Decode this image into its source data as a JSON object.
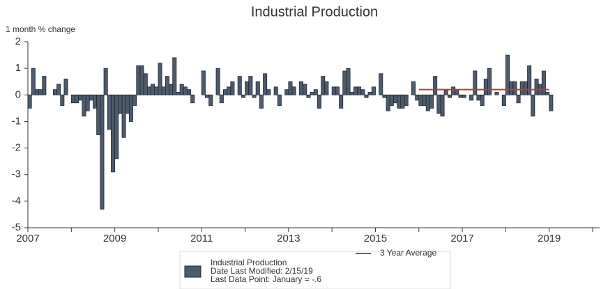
{
  "chart_data": {
    "type": "bar",
    "title": "Industrial Production",
    "ylabel": "1 month % change",
    "xlim": [
      2007,
      2020.16
    ],
    "xticks": [
      2007,
      2009,
      2011,
      2013,
      2015,
      2017,
      2019
    ],
    "xticks_minor": [
      2008,
      2010,
      2012,
      2014,
      2016,
      2018,
      2020
    ],
    "ylim": [
      -5,
      2
    ],
    "yticks": [
      -5,
      -4,
      -3,
      -2,
      -1,
      0,
      1,
      2
    ],
    "legend_notes": [
      "Date Last Modified: 2/15/19",
      "Last Data Point: January = -.6"
    ],
    "series": [
      {
        "name": "Industrial Production",
        "type": "bar",
        "color": "#4d5b6c",
        "width": 0.0833,
        "x": [
          2007.0,
          2007.083,
          2007.167,
          2007.25,
          2007.333,
          2007.417,
          2007.5,
          2007.583,
          2007.667,
          2007.75,
          2007.833,
          2007.917,
          2008.0,
          2008.083,
          2008.167,
          2008.25,
          2008.333,
          2008.417,
          2008.5,
          2008.583,
          2008.667,
          2008.75,
          2008.833,
          2008.917,
          2009.0,
          2009.083,
          2009.167,
          2009.25,
          2009.333,
          2009.417,
          2009.5,
          2009.583,
          2009.667,
          2009.75,
          2009.833,
          2009.917,
          2010.0,
          2010.083,
          2010.167,
          2010.25,
          2010.333,
          2010.417,
          2010.5,
          2010.583,
          2010.667,
          2010.75,
          2010.833,
          2010.917,
          2011.0,
          2011.083,
          2011.167,
          2011.25,
          2011.333,
          2011.417,
          2011.5,
          2011.583,
          2011.667,
          2011.75,
          2011.833,
          2011.917,
          2012.0,
          2012.083,
          2012.167,
          2012.25,
          2012.333,
          2012.417,
          2012.5,
          2012.583,
          2012.667,
          2012.75,
          2012.833,
          2012.917,
          2013.0,
          2013.083,
          2013.167,
          2013.25,
          2013.333,
          2013.417,
          2013.5,
          2013.583,
          2013.667,
          2013.75,
          2013.833,
          2013.917,
          2014.0,
          2014.083,
          2014.167,
          2014.25,
          2014.333,
          2014.417,
          2014.5,
          2014.583,
          2014.667,
          2014.75,
          2014.833,
          2014.917,
          2015.0,
          2015.083,
          2015.167,
          2015.25,
          2015.333,
          2015.417,
          2015.5,
          2015.583,
          2015.667,
          2015.75,
          2015.833,
          2015.917,
          2016.0,
          2016.083,
          2016.167,
          2016.25,
          2016.333,
          2016.417,
          2016.5,
          2016.583,
          2016.667,
          2016.75,
          2016.833,
          2016.917,
          2017.0,
          2017.083,
          2017.167,
          2017.25,
          2017.333,
          2017.417,
          2017.5,
          2017.583,
          2017.667,
          2017.75,
          2017.833,
          2017.917,
          2018.0,
          2018.083,
          2018.167,
          2018.25,
          2018.333,
          2018.417,
          2018.5,
          2018.583,
          2018.667,
          2018.75,
          2018.833,
          2018.917,
          2019.0
        ],
        "values": [
          -0.5,
          1.0,
          0.2,
          0.2,
          0.7,
          0.0,
          0.0,
          0.2,
          0.4,
          -0.4,
          0.6,
          0.0,
          -0.3,
          -0.3,
          -0.2,
          -0.8,
          -0.6,
          -0.2,
          -0.5,
          -1.5,
          -4.3,
          1.0,
          -1.3,
          -2.9,
          -2.4,
          -0.7,
          -1.6,
          -0.7,
          -1.0,
          -0.4,
          1.1,
          1.1,
          0.8,
          0.3,
          0.4,
          0.3,
          1.2,
          0.3,
          0.7,
          0.4,
          1.4,
          0.1,
          0.4,
          0.3,
          0.2,
          -0.3,
          0.0,
          0.0,
          0.9,
          -0.1,
          -0.4,
          0.0,
          1.0,
          -0.3,
          0.2,
          0.3,
          0.5,
          0.0,
          0.7,
          -0.1,
          0.5,
          0.7,
          -0.1,
          0.5,
          -0.5,
          0.8,
          0.2,
          0.0,
          0.3,
          -0.4,
          0.0,
          0.2,
          0.5,
          0.3,
          0.0,
          0.5,
          0.4,
          -0.1,
          0.1,
          0.2,
          -0.5,
          0.7,
          0.5,
          0.0,
          0.3,
          0.3,
          -0.5,
          0.9,
          1.0,
          0.1,
          0.3,
          0.3,
          0.2,
          -0.1,
          0.1,
          0.3,
          0.0,
          0.8,
          -0.1,
          -0.6,
          -0.4,
          -0.3,
          -0.5,
          -0.5,
          -0.4,
          0.0,
          0.5,
          -0.2,
          -0.4,
          -0.4,
          -0.6,
          -0.5,
          0.7,
          -0.7,
          -0.8,
          0.2,
          -0.1,
          0.3,
          0.2,
          -0.1,
          -0.1,
          0.0,
          -0.2,
          0.9,
          -0.2,
          -0.4,
          0.6,
          1.0,
          0.0,
          0.1,
          0.0,
          -0.4,
          1.5,
          0.5,
          0.5,
          -0.3,
          0.5,
          0.5,
          1.1,
          -0.8,
          0.6,
          0.4,
          0.9,
          0.1,
          -0.6
        ]
      },
      {
        "name": "3 Year Average",
        "type": "line",
        "color": "#c0392b",
        "x": [
          2016.0,
          2019.0
        ],
        "values": [
          0.2,
          0.2
        ]
      }
    ]
  }
}
